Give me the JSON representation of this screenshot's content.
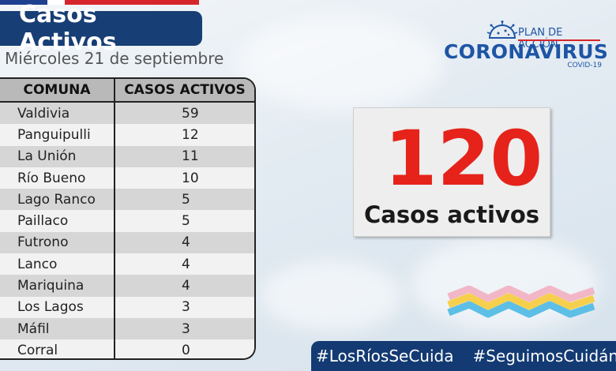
{
  "header": {
    "title": "Casos Activos",
    "date": "Miércoles 21 de septiembre"
  },
  "logo": {
    "plan": "PLAN DE ACCIÓN",
    "name": "CORONAVIRUS",
    "sub": "COVID-19",
    "icon": "virus-icon"
  },
  "table": {
    "headers": [
      "COMUNA",
      "CASOS ACTIVOS"
    ],
    "rows": [
      {
        "comuna": "Valdivia",
        "casos": "59"
      },
      {
        "comuna": "Panguipulli",
        "casos": "12"
      },
      {
        "comuna": "La Unión",
        "casos": "11"
      },
      {
        "comuna": "Río Bueno",
        "casos": "10"
      },
      {
        "comuna": "Lago Ranco",
        "casos": "5"
      },
      {
        "comuna": "Paillaco",
        "casos": "5"
      },
      {
        "comuna": "Futrono",
        "casos": "4"
      },
      {
        "comuna": "Lanco",
        "casos": "4"
      },
      {
        "comuna": "Mariquina",
        "casos": "4"
      },
      {
        "comuna": "Los Lagos",
        "casos": "3"
      },
      {
        "comuna": "Máfil",
        "casos": "3"
      },
      {
        "comuna": "Corral",
        "casos": "0"
      }
    ]
  },
  "total": {
    "value": "120",
    "label": "Casos activos"
  },
  "hashtags": [
    "#LosRíosSeCuida",
    "#SeguimosCuidándonos"
  ],
  "colors": {
    "navy": "#173e75",
    "red": "#e5231b",
    "logo_blue": "#1e55a5"
  }
}
